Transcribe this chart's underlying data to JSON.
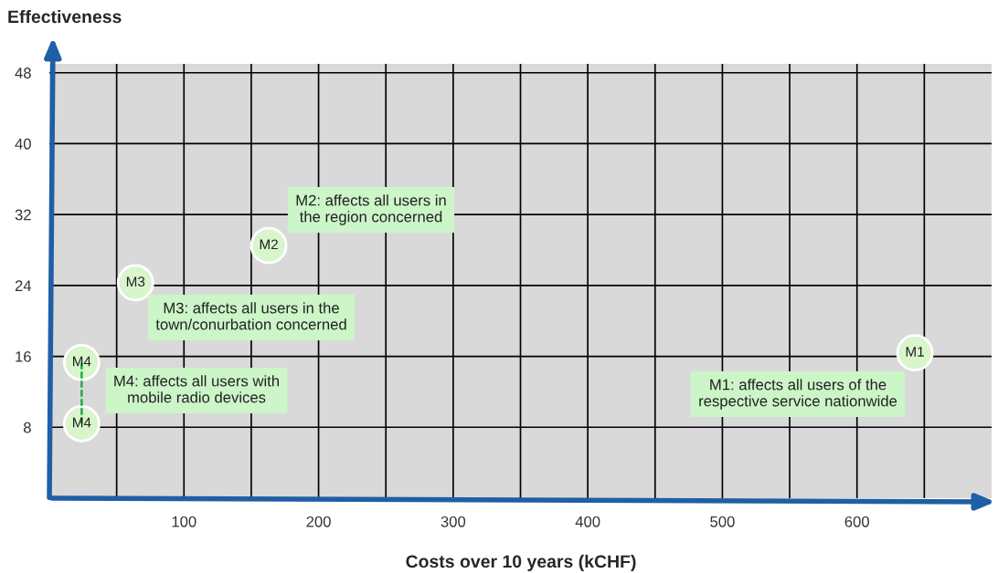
{
  "chart_data": {
    "type": "scatter",
    "xlabel": "Costs over 10 years (kCHF)",
    "ylabel": "Effectiveness",
    "x": [
      643,
      163,
      64,
      24,
      24
    ],
    "series": [
      {
        "type": "line",
        "x": [
          24,
          24
        ],
        "values": [
          15.3,
          8.4
        ],
        "color": "#22aa44",
        "line_style": "dashed",
        "marker": "none"
      },
      {
        "values": [
          16.4,
          28.5,
          24.3,
          15.3,
          8.4
        ],
        "color": "#d8f5cc",
        "marker": "circle",
        "value_labels": [
          "M1",
          "M2",
          "M3",
          "M4",
          "M4"
        ]
      }
    ],
    "annotations": [
      "M1: affects all users of the\nrespective service nationwide",
      "M2: affects all users in\nthe region concerned",
      "M3: affects all users in the\ntown/conurbation concerned",
      "M4: affects all users with\nmobile radio devices"
    ],
    "xlim": [
      0,
      700
    ],
    "ylim": [
      0,
      49
    ],
    "xticks": [
      {
        "value": 50,
        "label": null
      },
      100,
      {
        "value": 150,
        "label": null
      },
      200,
      {
        "value": 250,
        "label": null
      },
      300,
      {
        "value": 350,
        "label": null
      },
      400,
      {
        "value": 450,
        "label": null
      },
      500,
      {
        "value": 550,
        "label": null
      },
      600,
      {
        "value": 650,
        "label": null
      }
    ],
    "yticks": [
      8,
      16,
      24,
      32,
      40,
      48
    ],
    "grid": true,
    "legend": false
  }
}
